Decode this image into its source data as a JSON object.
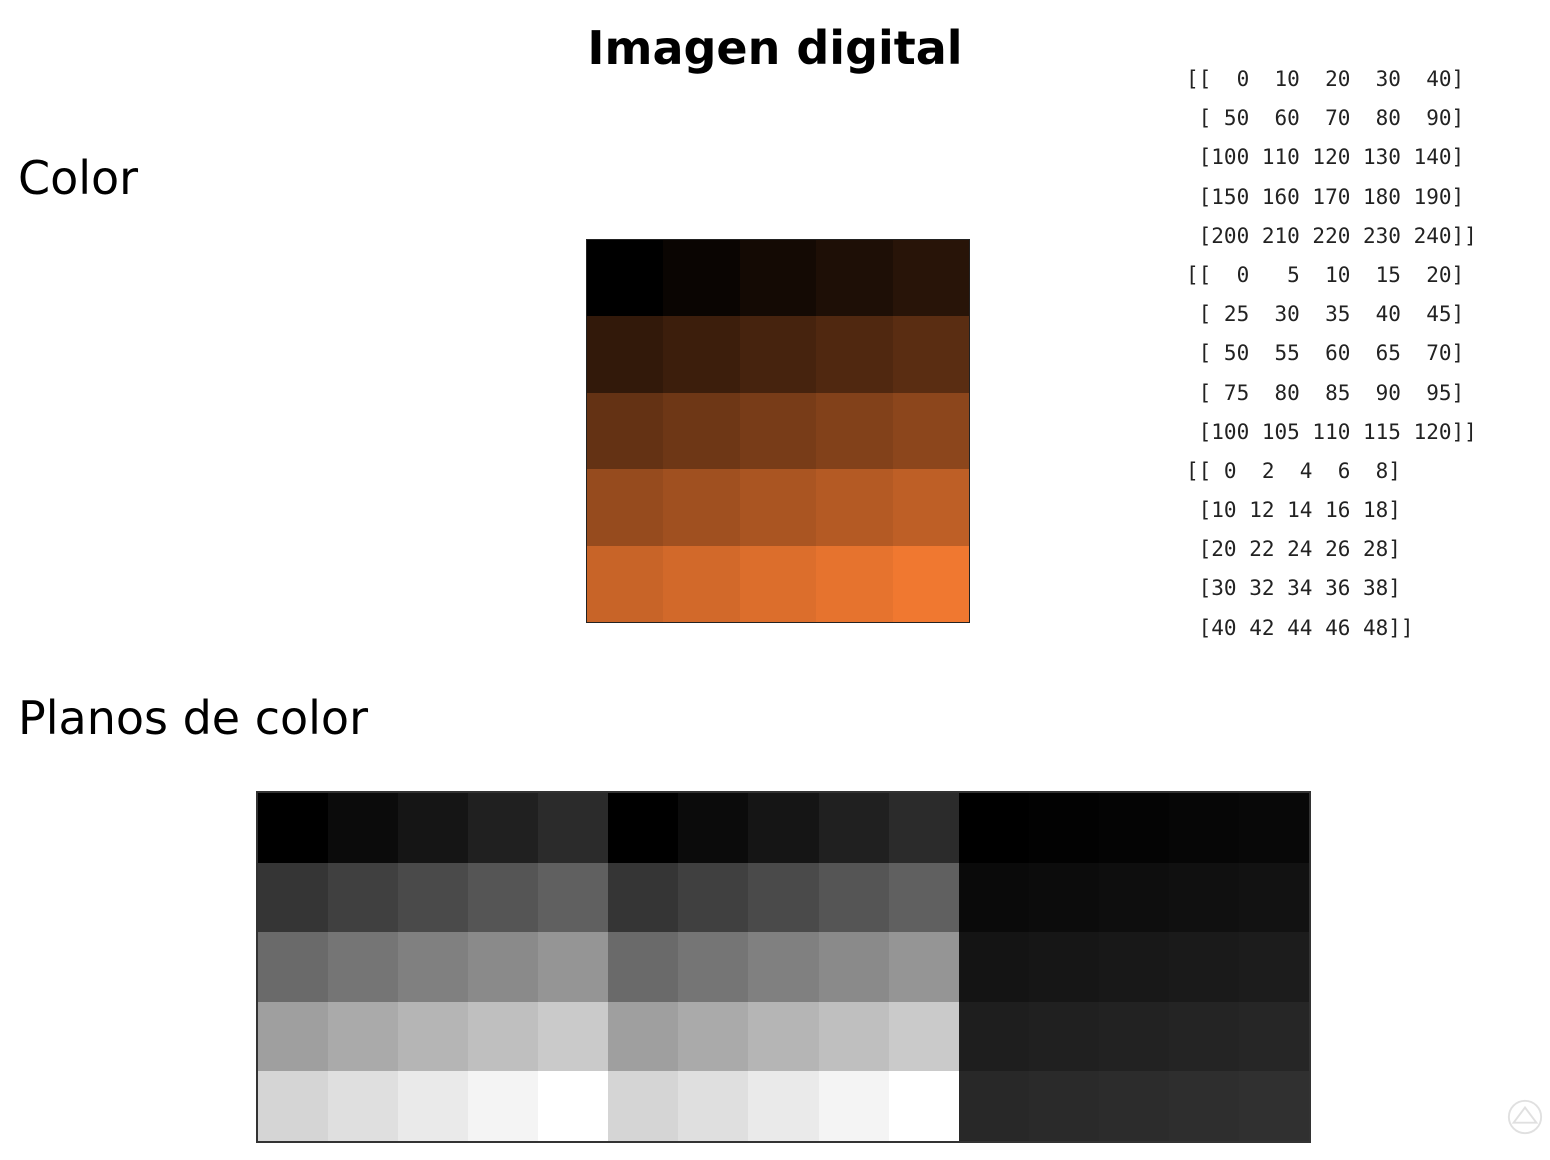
{
  "slide": {
    "title": "Imagen digital",
    "heading_color": "Color",
    "heading_planes": "Planos de color"
  },
  "matrices": {
    "red": [
      [
        0,
        10,
        20,
        30,
        40
      ],
      [
        50,
        60,
        70,
        80,
        90
      ],
      [
        100,
        110,
        120,
        130,
        140
      ],
      [
        150,
        160,
        170,
        180,
        190
      ],
      [
        200,
        210,
        220,
        230,
        240
      ]
    ],
    "green": [
      [
        0,
        5,
        10,
        15,
        20
      ],
      [
        25,
        30,
        35,
        40,
        45
      ],
      [
        50,
        55,
        60,
        65,
        70
      ],
      [
        75,
        80,
        85,
        90,
        95
      ],
      [
        100,
        105,
        110,
        115,
        120
      ]
    ],
    "blue": [
      [
        0,
        2,
        4,
        6,
        8
      ],
      [
        10,
        12,
        14,
        16,
        18
      ],
      [
        20,
        22,
        24,
        26,
        28
      ],
      [
        30,
        32,
        34,
        36,
        38
      ],
      [
        40,
        42,
        44,
        46,
        48
      ]
    ]
  },
  "matrix_lines": [
    "[[  0  10  20  30  40]",
    " [ 50  60  70  80  90]",
    " [100 110 120 130 140]",
    " [150 160 170 180 190]",
    " [200 210 220 230 240]]",
    "[[  0   5  10  15  20]",
    " [ 25  30  35  40  45]",
    " [ 50  55  60  65  70]",
    " [ 75  80  85  90  95]",
    " [100 105 110 115 120]]",
    "[[ 0  2  4  6  8]",
    " [10 12 14 16 18]",
    " [20 22 24 26 28]",
    " [30 32 34 36 38]",
    " [40 42 44 46 48]]"
  ],
  "plane_display": [
    {
      "channel": "red",
      "scale": "auto"
    },
    {
      "channel": "green",
      "scale": "auto"
    },
    {
      "channel": "blue",
      "scale": "full"
    }
  ]
}
